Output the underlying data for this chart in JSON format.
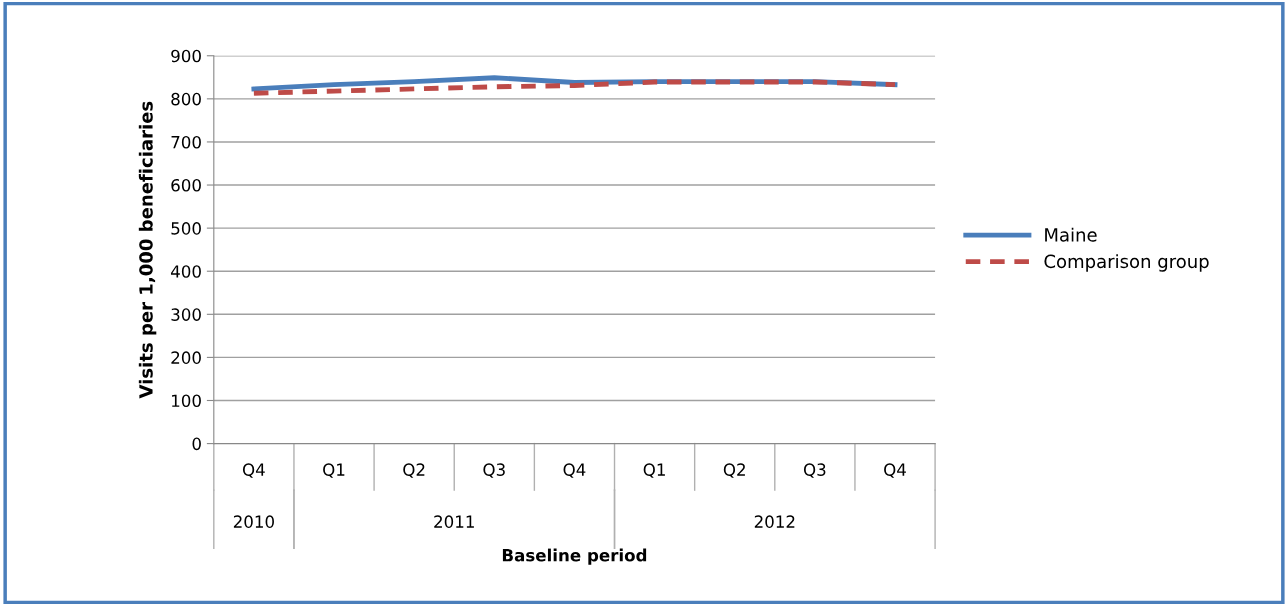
{
  "chart_data": {
    "type": "line",
    "xlabel": "Baseline period",
    "ylabel": "Visits per 1,000 beneficiaries",
    "categories": [
      "Q4",
      "Q1",
      "Q2",
      "Q3",
      "Q4",
      "Q1",
      "Q2",
      "Q3",
      "Q4"
    ],
    "series": [
      {
        "name": "Maine",
        "color": "#4a7ebb",
        "line_style": "solid",
        "values": [
          823,
          833,
          840,
          849,
          838,
          840,
          840,
          840,
          833
        ]
      },
      {
        "name": "Comparison group",
        "color": "#be4b48",
        "line_style": "dashed",
        "values": [
          813,
          818,
          823,
          828,
          831,
          839,
          839,
          839,
          833
        ]
      }
    ],
    "ylim": [
      0,
      900
    ],
    "yticks": [
      0,
      100,
      200,
      300,
      400,
      500,
      600,
      700,
      800,
      900
    ],
    "grid": "y",
    "legend": "right",
    "marker": "none",
    "annotations": [
      "2010",
      "2011",
      "2012"
    ]
  }
}
